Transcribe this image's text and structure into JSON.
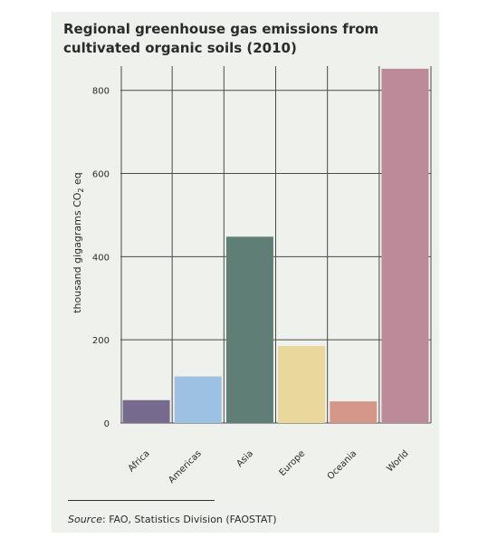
{
  "chart_data": {
    "type": "bar",
    "title": "Regional greenhouse gas emissions from cultivated organic soils (2010)",
    "ylabel_main": "thousand gigagrams CO",
    "ylabel_sub": "2",
    "ylabel_tail": " eq",
    "categories": [
      "Africa",
      "Americas",
      "Asia",
      "Europe",
      "Oceania",
      "World"
    ],
    "values": [
      55,
      112,
      448,
      185,
      52,
      852
    ],
    "colors": [
      "#776a8f",
      "#9dc1e2",
      "#5f7f76",
      "#ead79b",
      "#d4978a",
      "#bd8a9a"
    ],
    "yticks": [
      0,
      200,
      400,
      600,
      800
    ],
    "ylim": [
      0,
      880
    ],
    "grid": true,
    "legend": "none"
  },
  "source": {
    "label": "Source",
    "text": ": FAO, Statistics Division (FAOSTAT)"
  }
}
